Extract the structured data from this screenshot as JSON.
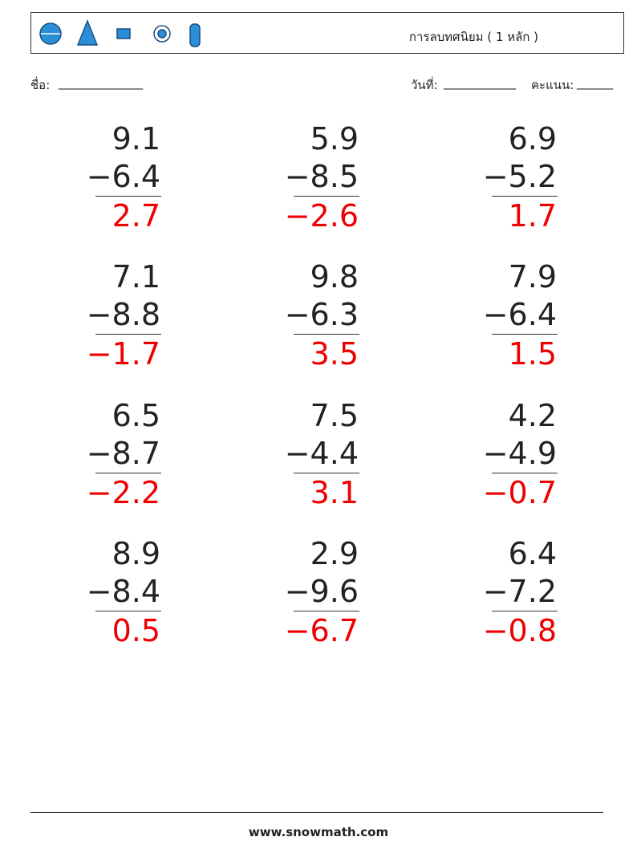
{
  "header": {
    "title": "การลบทศนิยม ( 1 หลัก )"
  },
  "fields": {
    "name_label": "ชื่อ:",
    "name_blank": "______________",
    "date_label": "วันที่:",
    "date_blank": "____________",
    "score_label": "คะแนน:",
    "score_blank": "______"
  },
  "problems": [
    {
      "top": "9.1",
      "bottom": "−6.4",
      "answer": "2.7"
    },
    {
      "top": "5.9",
      "bottom": "−8.5",
      "answer": "−2.6"
    },
    {
      "top": "6.9",
      "bottom": "−5.2",
      "answer": "1.7"
    },
    {
      "top": "7.1",
      "bottom": "−8.8",
      "answer": "−1.7"
    },
    {
      "top": "9.8",
      "bottom": "−6.3",
      "answer": "3.5"
    },
    {
      "top": "7.9",
      "bottom": "−6.4",
      "answer": "1.5"
    },
    {
      "top": "6.5",
      "bottom": "−8.7",
      "answer": "−2.2"
    },
    {
      "top": "7.5",
      "bottom": "−4.4",
      "answer": "3.1"
    },
    {
      "top": "4.2",
      "bottom": "−4.9",
      "answer": "−0.7"
    },
    {
      "top": "8.9",
      "bottom": "−8.4",
      "answer": "0.5"
    },
    {
      "top": "2.9",
      "bottom": "−9.6",
      "answer": "−6.7"
    },
    {
      "top": "6.4",
      "bottom": "−7.2",
      "answer": "−0.8"
    }
  ],
  "footer": "www.snowmath.com"
}
